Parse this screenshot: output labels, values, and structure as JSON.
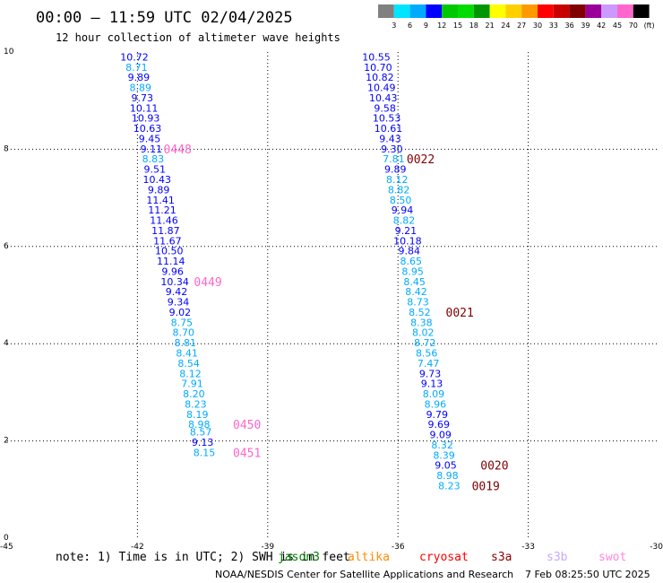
{
  "title": "00:00 – 11:59 UTC 02/04/2025",
  "subtitle": "12 hour collection of altimeter wave heights",
  "color_scale": {
    "labels": [
      "3",
      "6",
      "9",
      "12",
      "15",
      "18",
      "21",
      "24",
      "27",
      "30",
      "33",
      "36",
      "39",
      "42",
      "45",
      "70",
      "(ft)"
    ],
    "colors": [
      "#808080",
      "#00e5ff",
      "#00aaff",
      "#0000ff",
      "#00c800",
      "#00dc00",
      "#009600",
      "#ffff00",
      "#ffd000",
      "#ff9900",
      "#ff0000",
      "#c80000",
      "#800000",
      "#9a0099",
      "#cc99ff",
      "#ff66cc",
      "#000000"
    ]
  },
  "footer": {
    "note": "note:  1) Time is in UTC; 2) SWH is in feet",
    "satellites": [
      {
        "name": "jason3",
        "color": "#008000"
      },
      {
        "name": "altika",
        "color": "#ff8c00"
      },
      {
        "name": "cryosat",
        "color": "#ff0000"
      },
      {
        "name": "s3a",
        "color": "#8b0000"
      },
      {
        "name": "s3b",
        "color": "#c8a8ff"
      },
      {
        "name": "swot",
        "color": "#ff88dd"
      }
    ],
    "credit": "NOAA/NESDIS Center for Satellite Applications and Research",
    "timestamp": "7 Feb 08:25:50 UTC 2025"
  },
  "chart_data": {
    "type": "scatter",
    "title": "00:00 – 11:59 UTC 02/04/2025",
    "xlim": [
      -45,
      -30
    ],
    "ylim": [
      0,
      10
    ],
    "x_ticks": [
      -45,
      -42,
      -39,
      -36,
      -33,
      -30
    ],
    "y_ticks": [
      0,
      2,
      4,
      6,
      8,
      10
    ],
    "grid": true,
    "units": "ft",
    "series": [
      {
        "id": "track-west",
        "points": [
          {
            "lon": -42.07,
            "lat": 9.9,
            "swh": "10.72"
          },
          {
            "lon": -42.02,
            "lat": 9.69,
            "swh": "8.71"
          },
          {
            "lon": -41.97,
            "lat": 9.48,
            "swh": "9.89"
          },
          {
            "lon": -41.93,
            "lat": 9.27,
            "swh": "8.89"
          },
          {
            "lon": -41.89,
            "lat": 9.06,
            "swh": "9.73"
          },
          {
            "lon": -41.85,
            "lat": 8.85,
            "swh": "10.11"
          },
          {
            "lon": -41.81,
            "lat": 8.64,
            "swh": "10.93"
          },
          {
            "lon": -41.77,
            "lat": 8.43,
            "swh": "10.63"
          },
          {
            "lon": -41.72,
            "lat": 8.22,
            "swh": "9.45"
          },
          {
            "lon": -41.68,
            "lat": 8.01,
            "swh": "9.11"
          },
          {
            "lon": -41.64,
            "lat": 7.8,
            "swh": "8.83"
          },
          {
            "lon": -41.6,
            "lat": 7.59,
            "swh": "9.51"
          },
          {
            "lon": -41.55,
            "lat": 7.38,
            "swh": "10.43"
          },
          {
            "lon": -41.51,
            "lat": 7.17,
            "swh": "9.89"
          },
          {
            "lon": -41.47,
            "lat": 6.96,
            "swh": "11.41"
          },
          {
            "lon": -41.43,
            "lat": 6.75,
            "swh": "11.21"
          },
          {
            "lon": -41.39,
            "lat": 6.54,
            "swh": "11.46"
          },
          {
            "lon": -41.35,
            "lat": 6.33,
            "swh": "11.87"
          },
          {
            "lon": -41.31,
            "lat": 6.12,
            "swh": "11.67"
          },
          {
            "lon": -41.27,
            "lat": 5.91,
            "swh": "10.50"
          },
          {
            "lon": -41.23,
            "lat": 5.7,
            "swh": "11.14"
          },
          {
            "lon": -41.19,
            "lat": 5.49,
            "swh": "9.96"
          },
          {
            "lon": -41.14,
            "lat": 5.28,
            "swh": "10.34"
          },
          {
            "lon": -41.1,
            "lat": 5.07,
            "swh": "9.42"
          },
          {
            "lon": -41.06,
            "lat": 4.86,
            "swh": "9.34"
          },
          {
            "lon": -41.02,
            "lat": 4.65,
            "swh": "9.02"
          },
          {
            "lon": -40.98,
            "lat": 4.44,
            "swh": "8.75"
          },
          {
            "lon": -40.94,
            "lat": 4.23,
            "swh": "8.70"
          },
          {
            "lon": -40.9,
            "lat": 4.02,
            "swh": "8.81"
          },
          {
            "lon": -40.86,
            "lat": 3.81,
            "swh": "8.41"
          },
          {
            "lon": -40.82,
            "lat": 3.6,
            "swh": "8.54"
          },
          {
            "lon": -40.78,
            "lat": 3.39,
            "swh": "8.12"
          },
          {
            "lon": -40.74,
            "lat": 3.18,
            "swh": "7.91"
          },
          {
            "lon": -40.7,
            "lat": 2.97,
            "swh": "8.20"
          },
          {
            "lon": -40.66,
            "lat": 2.76,
            "swh": "8.23"
          },
          {
            "lon": -40.62,
            "lat": 2.55,
            "swh": "8.19"
          },
          {
            "lon": -40.58,
            "lat": 2.34,
            "swh": "8.98"
          },
          {
            "lon": -40.54,
            "lat": 2.19,
            "swh": "8.57"
          },
          {
            "lon": -40.5,
            "lat": 1.97,
            "swh": "9.13"
          },
          {
            "lon": -40.46,
            "lat": 1.76,
            "swh": "8.15"
          }
        ]
      },
      {
        "id": "track-east",
        "points": [
          {
            "lon": -36.5,
            "lat": 9.9,
            "swh": "10.55"
          },
          {
            "lon": -36.46,
            "lat": 9.69,
            "swh": "10.70"
          },
          {
            "lon": -36.42,
            "lat": 9.48,
            "swh": "10.82"
          },
          {
            "lon": -36.38,
            "lat": 9.27,
            "swh": "10.49"
          },
          {
            "lon": -36.34,
            "lat": 9.06,
            "swh": "10.43"
          },
          {
            "lon": -36.3,
            "lat": 8.85,
            "swh": "9.58"
          },
          {
            "lon": -36.26,
            "lat": 8.64,
            "swh": "10.53"
          },
          {
            "lon": -36.22,
            "lat": 8.43,
            "swh": "10.61"
          },
          {
            "lon": -36.18,
            "lat": 8.22,
            "swh": "9.43"
          },
          {
            "lon": -36.14,
            "lat": 8.01,
            "swh": "9.30"
          },
          {
            "lon": -36.1,
            "lat": 7.8,
            "swh": "7.81"
          },
          {
            "lon": -36.06,
            "lat": 7.59,
            "swh": "9.89"
          },
          {
            "lon": -36.02,
            "lat": 7.38,
            "swh": "8.12"
          },
          {
            "lon": -35.98,
            "lat": 7.17,
            "swh": "8.82"
          },
          {
            "lon": -35.94,
            "lat": 6.96,
            "swh": "8.50"
          },
          {
            "lon": -35.9,
            "lat": 6.75,
            "swh": "9.94"
          },
          {
            "lon": -35.86,
            "lat": 6.54,
            "swh": "8.82"
          },
          {
            "lon": -35.82,
            "lat": 6.33,
            "swh": "9.21"
          },
          {
            "lon": -35.78,
            "lat": 6.12,
            "swh": "10.18"
          },
          {
            "lon": -35.74,
            "lat": 5.91,
            "swh": "9.84"
          },
          {
            "lon": -35.7,
            "lat": 5.7,
            "swh": "8.65"
          },
          {
            "lon": -35.66,
            "lat": 5.49,
            "swh": "8.95"
          },
          {
            "lon": -35.62,
            "lat": 5.28,
            "swh": "8.45"
          },
          {
            "lon": -35.58,
            "lat": 5.07,
            "swh": "8.42"
          },
          {
            "lon": -35.54,
            "lat": 4.86,
            "swh": "8.73"
          },
          {
            "lon": -35.5,
            "lat": 4.65,
            "swh": "8.52"
          },
          {
            "lon": -35.46,
            "lat": 4.44,
            "swh": "8.38"
          },
          {
            "lon": -35.42,
            "lat": 4.23,
            "swh": "8.02"
          },
          {
            "lon": -35.38,
            "lat": 4.02,
            "swh": "8.72"
          },
          {
            "lon": -35.34,
            "lat": 3.81,
            "swh": "8.56"
          },
          {
            "lon": -35.3,
            "lat": 3.6,
            "swh": "7.47"
          },
          {
            "lon": -35.26,
            "lat": 3.39,
            "swh": "9.73"
          },
          {
            "lon": -35.22,
            "lat": 3.18,
            "swh": "9.13"
          },
          {
            "lon": -35.18,
            "lat": 2.97,
            "swh": "8.09"
          },
          {
            "lon": -35.14,
            "lat": 2.76,
            "swh": "8.96"
          },
          {
            "lon": -35.1,
            "lat": 2.55,
            "swh": "9.79"
          },
          {
            "lon": -35.06,
            "lat": 2.34,
            "swh": "9.69"
          },
          {
            "lon": -35.02,
            "lat": 2.13,
            "swh": "9.09"
          },
          {
            "lon": -34.98,
            "lat": 1.92,
            "swh": "8.32"
          },
          {
            "lon": -34.94,
            "lat": 1.71,
            "swh": "8.39"
          },
          {
            "lon": -34.9,
            "lat": 1.5,
            "swh": "9.05"
          },
          {
            "lon": -34.86,
            "lat": 1.29,
            "swh": "8.98"
          },
          {
            "lon": -34.82,
            "lat": 1.08,
            "swh": "8.23"
          }
        ]
      }
    ],
    "pass_labels": [
      {
        "label": "0448",
        "lon": -41.4,
        "lat": 8.01,
        "color": "#ff66cc"
      },
      {
        "label": "0449",
        "lon": -40.7,
        "lat": 5.28,
        "color": "#ff66cc"
      },
      {
        "label": "0450",
        "lon": -39.8,
        "lat": 2.34,
        "color": "#ff66cc"
      },
      {
        "label": "0451",
        "lon": -39.8,
        "lat": 1.76,
        "color": "#ff66cc"
      },
      {
        "label": "0022",
        "lon": -35.8,
        "lat": 7.8,
        "color": "#800000"
      },
      {
        "label": "0021",
        "lon": -34.9,
        "lat": 4.65,
        "color": "#800000"
      },
      {
        "label": "0020",
        "lon": -34.1,
        "lat": 1.5,
        "color": "#800000"
      },
      {
        "label": "0019",
        "lon": -34.3,
        "lat": 1.08,
        "color": "#800000"
      }
    ]
  }
}
